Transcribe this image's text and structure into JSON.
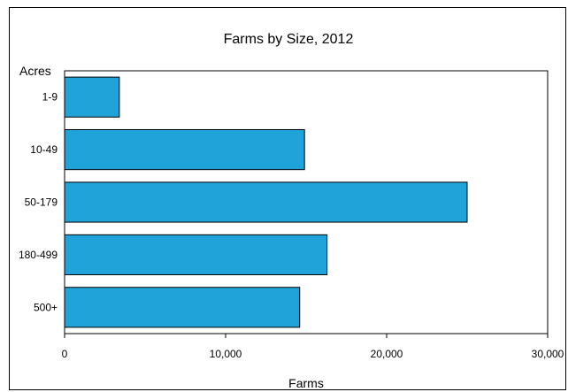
{
  "chart_data": {
    "type": "bar",
    "orientation": "horizontal",
    "title": "Farms by Size, 2012",
    "xlabel": "Farms",
    "ylabel": "Acres",
    "categories": [
      "1-9",
      "10-49",
      "50-179",
      "180-499",
      "500+"
    ],
    "values": [
      3400,
      14900,
      25000,
      16300,
      14600
    ],
    "xlim": [
      0,
      30000
    ],
    "xticks": [
      0,
      10000,
      20000,
      30000
    ],
    "xtick_labels": [
      "0",
      "10,000",
      "20,000",
      "30,000"
    ],
    "grid": false,
    "legend": "none",
    "bar_color": "#1fa3d8",
    "bar_edge_color": "#000000"
  }
}
